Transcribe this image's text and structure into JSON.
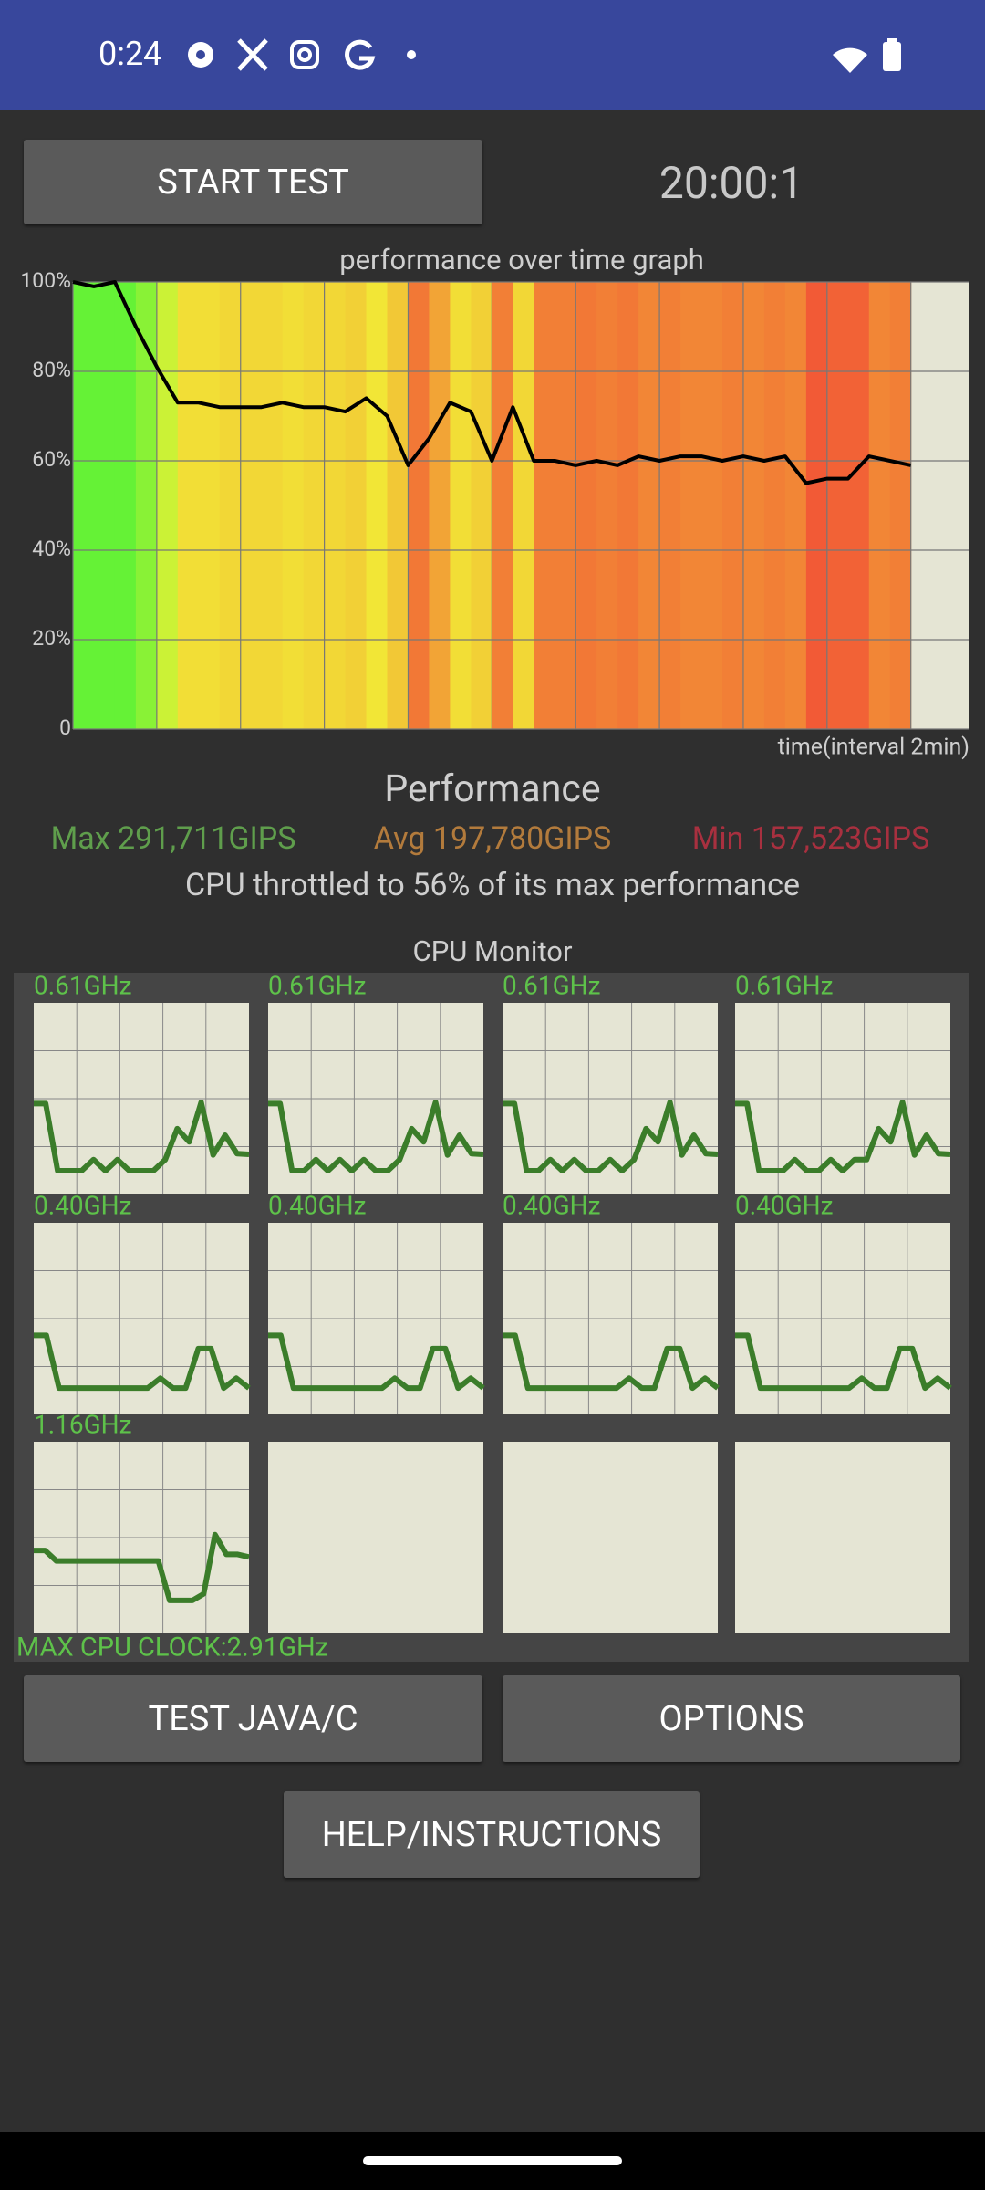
{
  "status_bar": {
    "time": "0:24"
  },
  "buttons": {
    "start_test": "START TEST",
    "test_java_c": "TEST JAVA/C",
    "options": "OPTIONS",
    "help": "HELP/INSTRUCTIONS"
  },
  "timer": "20:00:1",
  "chart_data": {
    "type": "line",
    "title": "performance over time graph",
    "x_label": "time(interval 2min)",
    "x": [
      0,
      0.5,
      1,
      1.5,
      2,
      2.5,
      3,
      3.5,
      4,
      4.5,
      5,
      5.5,
      6,
      6.5,
      7,
      7.5,
      8,
      8.5,
      9,
      9.5,
      10,
      10.5,
      11,
      11.5,
      12,
      12.5,
      13,
      13.5,
      14,
      14.5,
      15,
      15.5,
      16,
      16.5,
      17,
      17.5,
      18,
      18.5,
      19,
      19.5,
      20
    ],
    "values": [
      100,
      99,
      100,
      90,
      81,
      73,
      73,
      72,
      72,
      72,
      73,
      72,
      72,
      71,
      74,
      70,
      59,
      65,
      73,
      71,
      60,
      72,
      60,
      60,
      59,
      60,
      59,
      61,
      60,
      61,
      61,
      60,
      61,
      60,
      61,
      55,
      56,
      56,
      61,
      60,
      59
    ],
    "xlim": [
      0,
      21.4
    ],
    "xticks": [
      0,
      2,
      4,
      6,
      8,
      10,
      12,
      14,
      16,
      18,
      20
    ],
    "ylim": [
      0,
      100
    ],
    "yticks": [
      0,
      {
        "value": 20,
        "label": "20%"
      },
      {
        "value": 40,
        "label": "40%"
      },
      {
        "value": 60,
        "label": "60%"
      },
      {
        "value": 80,
        "label": "80%"
      },
      {
        "value": 100,
        "label": "100%"
      }
    ],
    "grid": true,
    "color": "#000000"
  },
  "performance": {
    "heading": "Performance",
    "max": "Max 291,711GIPS",
    "avg": "Avg 197,780GIPS",
    "min": "Min 157,523GIPS",
    "throttle": "CPU throttled to 56% of its max performance"
  },
  "cpu_monitor": {
    "title": "CPU Monitor",
    "ylim": [
      0,
      2.91
    ],
    "color": "#3b7d2a",
    "cores": [
      {
        "label": "0.61GHz",
        "values": [
          1.38,
          1.38,
          0.36,
          0.36,
          0.36,
          0.53,
          0.36,
          0.53,
          0.36,
          0.36,
          0.36,
          0.53,
          1.0,
          0.8,
          1.4,
          0.6,
          0.9,
          0.62,
          0.61
        ]
      },
      {
        "label": "0.61GHz",
        "values": [
          1.38,
          1.38,
          0.36,
          0.36,
          0.53,
          0.36,
          0.53,
          0.36,
          0.53,
          0.36,
          0.36,
          0.53,
          1.0,
          0.8,
          1.4,
          0.6,
          0.9,
          0.62,
          0.61
        ]
      },
      {
        "label": "0.61GHz",
        "values": [
          1.38,
          1.38,
          0.36,
          0.36,
          0.53,
          0.36,
          0.53,
          0.36,
          0.36,
          0.53,
          0.36,
          0.53,
          1.0,
          0.8,
          1.4,
          0.6,
          0.9,
          0.62,
          0.61
        ]
      },
      {
        "label": "0.61GHz",
        "values": [
          1.38,
          1.38,
          0.36,
          0.36,
          0.36,
          0.53,
          0.36,
          0.36,
          0.53,
          0.36,
          0.53,
          0.53,
          1.0,
          0.8,
          1.4,
          0.6,
          0.9,
          0.62,
          0.61
        ]
      },
      {
        "label": "0.40GHz",
        "values": [
          1.2,
          1.2,
          0.4,
          0.4,
          0.4,
          0.4,
          0.4,
          0.4,
          0.4,
          0.4,
          0.55,
          0.4,
          0.4,
          1.0,
          1.0,
          0.4,
          0.55,
          0.4
        ]
      },
      {
        "label": "0.40GHz",
        "values": [
          1.2,
          1.2,
          0.4,
          0.4,
          0.4,
          0.4,
          0.4,
          0.4,
          0.4,
          0.4,
          0.55,
          0.4,
          0.4,
          1.0,
          1.0,
          0.4,
          0.55,
          0.4
        ]
      },
      {
        "label": "0.40GHz",
        "values": [
          1.2,
          1.2,
          0.4,
          0.4,
          0.4,
          0.4,
          0.4,
          0.4,
          0.4,
          0.4,
          0.55,
          0.4,
          0.4,
          1.0,
          1.0,
          0.4,
          0.55,
          0.4
        ]
      },
      {
        "label": "0.40GHz",
        "values": [
          1.2,
          1.2,
          0.4,
          0.4,
          0.4,
          0.4,
          0.4,
          0.4,
          0.4,
          0.4,
          0.55,
          0.4,
          0.4,
          1.0,
          1.0,
          0.4,
          0.55,
          0.4
        ]
      },
      {
        "label": "1.16GHz",
        "values": [
          1.26,
          1.26,
          1.1,
          1.1,
          1.1,
          1.1,
          1.1,
          1.1,
          1.1,
          1.1,
          1.1,
          1.1,
          0.5,
          0.5,
          0.5,
          0.6,
          1.5,
          1.2,
          1.2,
          1.16
        ]
      },
      {
        "values": []
      },
      {
        "values": []
      },
      {
        "values": []
      }
    ],
    "max_clock": "MAX CPU CLOCK:2.91GHz"
  }
}
